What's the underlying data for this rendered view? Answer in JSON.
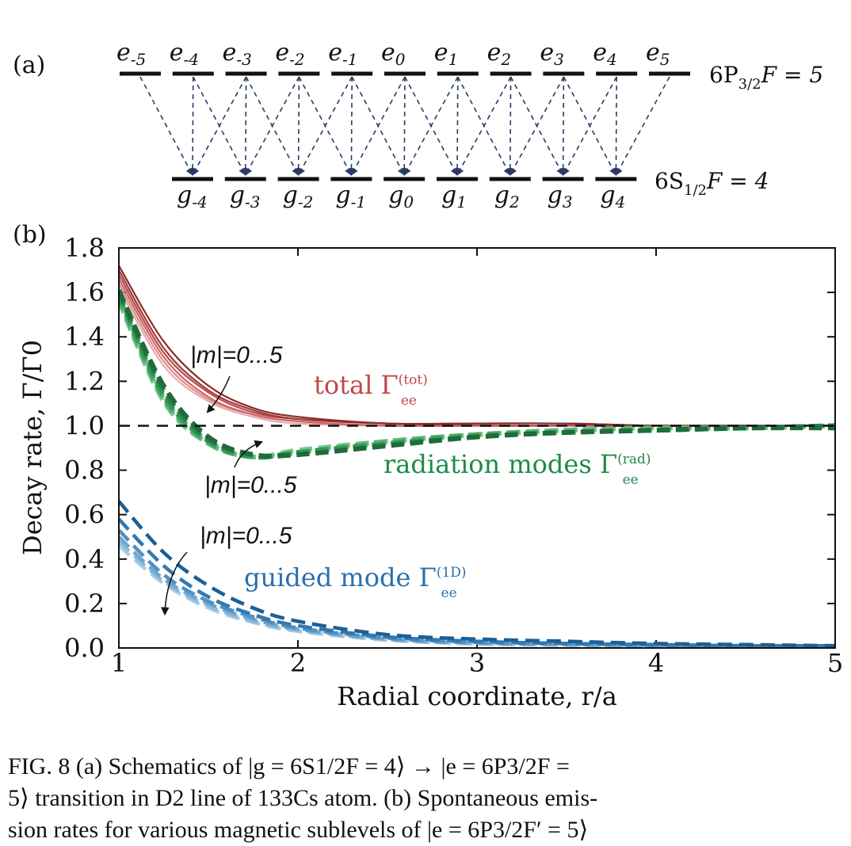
{
  "panel_a": {
    "label": "(a)",
    "excited_levels": [
      "-5",
      "-4",
      "-3",
      "-2",
      "-1",
      "0",
      "1",
      "2",
      "3",
      "4",
      "5"
    ],
    "ground_levels": [
      "-4",
      "-3",
      "-2",
      "-1",
      "0",
      "1",
      "2",
      "3",
      "4"
    ],
    "excited_state_label": "6P",
    "excited_state_sub": "3/2",
    "excited_state_F": "F = 5",
    "ground_state_label": "6S",
    "ground_state_sub": "1/2",
    "ground_state_F": "F = 4"
  },
  "panel_b": {
    "label": "(b)"
  },
  "chart_data": {
    "type": "line",
    "xlabel": "Radial coordinate, r/a",
    "ylabel": "Decay rate, Γ/Γ0",
    "xlim": [
      1,
      5
    ],
    "ylim": [
      0,
      1.8
    ],
    "xticks": [
      "1",
      "2",
      "3",
      "4",
      "5"
    ],
    "yticks": [
      "0.0",
      "0.2",
      "0.4",
      "0.6",
      "0.8",
      "1.0",
      "1.2",
      "1.4",
      "1.6",
      "1.8"
    ],
    "reference_line": {
      "y": 1.0,
      "style": "dashed",
      "color": "#111111"
    },
    "annotations": {
      "total_label": "total Γ",
      "total_sup": "(tot)",
      "total_sub": "ee",
      "rad_label": "radiation modes Γ",
      "rad_sup": "(rad)",
      "rad_sub": "ee",
      "guided_label": "guided mode Γ",
      "guided_sup": "(1D)",
      "guided_sub": "ee",
      "m_label_total": "|m|=0...5",
      "m_label_rad": "|m|=0...5",
      "m_label_guided": "|m|=0...5"
    },
    "x": [
      1.0,
      1.25,
      1.5,
      1.75,
      2.0,
      2.5,
      3.0,
      3.5,
      4.0,
      4.5,
      5.0
    ],
    "series_groups": [
      {
        "name": "total",
        "style": "solid",
        "series": [
          {
            "name": "|m|=0",
            "color": "#8a2a2a",
            "values": [
              1.72,
              1.38,
              1.18,
              1.08,
              1.04,
              1.01,
              1.01,
              1.01,
              1.0,
              1.0,
              1.0
            ]
          },
          {
            "name": "|m|=1",
            "color": "#a13a3a",
            "values": [
              1.7,
              1.35,
              1.16,
              1.07,
              1.03,
              1.01,
              1.01,
              1.01,
              1.0,
              1.0,
              1.0
            ]
          },
          {
            "name": "|m|=2",
            "color": "#b84b4b",
            "values": [
              1.68,
              1.33,
              1.15,
              1.06,
              1.03,
              1.01,
              1.0,
              1.0,
              1.0,
              1.0,
              1.0
            ]
          },
          {
            "name": "|m|=3",
            "color": "#cc6666",
            "values": [
              1.66,
              1.31,
              1.13,
              1.05,
              1.02,
              1.0,
              1.0,
              1.0,
              1.0,
              1.0,
              1.0
            ]
          },
          {
            "name": "|m|=4",
            "color": "#dd8a8a",
            "values": [
              1.64,
              1.29,
              1.12,
              1.05,
              1.02,
              1.0,
              1.0,
              1.0,
              1.0,
              1.0,
              1.0
            ]
          },
          {
            "name": "|m|=5",
            "color": "#e8aaaa",
            "values": [
              1.62,
              1.27,
              1.11,
              1.04,
              1.01,
              1.0,
              1.0,
              1.0,
              1.0,
              1.0,
              1.0
            ]
          }
        ]
      },
      {
        "name": "radiation",
        "style": "dashed",
        "series": [
          {
            "name": "|m|=0",
            "color": "#1f6b3a",
            "values": [
              1.61,
              1.18,
              0.95,
              0.87,
              0.87,
              0.91,
              0.95,
              0.97,
              0.98,
              0.99,
              0.99
            ]
          },
          {
            "name": "|m|=1",
            "color": "#2a8048",
            "values": [
              1.6,
              1.16,
              0.94,
              0.87,
              0.87,
              0.91,
              0.95,
              0.97,
              0.98,
              0.99,
              1.0
            ]
          },
          {
            "name": "|m|=2",
            "color": "#349955",
            "values": [
              1.59,
              1.14,
              0.93,
              0.86,
              0.88,
              0.92,
              0.95,
              0.97,
              0.98,
              0.99,
              1.0
            ]
          },
          {
            "name": "|m|=3",
            "color": "#44a864",
            "values": [
              1.58,
              1.13,
              0.93,
              0.86,
              0.88,
              0.92,
              0.96,
              0.97,
              0.98,
              0.99,
              1.0
            ]
          },
          {
            "name": "|m|=4",
            "color": "#5db87a",
            "values": [
              1.57,
              1.12,
              0.92,
              0.86,
              0.88,
              0.93,
              0.96,
              0.98,
              0.99,
              0.99,
              1.0
            ]
          },
          {
            "name": "|m|=5",
            "color": "#7cc892",
            "values": [
              1.56,
              1.11,
              0.92,
              0.86,
              0.89,
              0.93,
              0.96,
              0.98,
              0.99,
              0.99,
              1.0
            ]
          }
        ]
      },
      {
        "name": "guided",
        "style": "dashed",
        "series": [
          {
            "name": "|m|=0",
            "color": "#1b5f96",
            "values": [
              0.66,
              0.43,
              0.28,
              0.18,
              0.12,
              0.06,
              0.04,
              0.03,
              0.02,
              0.015,
              0.01
            ]
          },
          {
            "name": "|m|=1",
            "color": "#3378b0",
            "values": [
              0.58,
              0.37,
              0.23,
              0.15,
              0.1,
              0.05,
              0.03,
              0.02,
              0.015,
              0.01,
              0.01
            ]
          },
          {
            "name": "|m|=2",
            "color": "#5090c2",
            "values": [
              0.53,
              0.33,
              0.21,
              0.14,
              0.09,
              0.045,
              0.025,
              0.02,
              0.012,
              0.01,
              0.008
            ]
          },
          {
            "name": "|m|=3",
            "color": "#6ea6d0",
            "values": [
              0.5,
              0.31,
              0.2,
              0.13,
              0.085,
              0.04,
              0.022,
              0.016,
              0.01,
              0.008,
              0.006
            ]
          },
          {
            "name": "|m|=4",
            "color": "#8dbbdc",
            "values": [
              0.48,
              0.3,
              0.19,
              0.12,
              0.08,
              0.038,
              0.02,
              0.014,
              0.01,
              0.007,
              0.005
            ]
          },
          {
            "name": "|m|=5",
            "color": "#a9cde6",
            "values": [
              0.46,
              0.29,
              0.18,
              0.115,
              0.075,
              0.035,
              0.018,
              0.012,
              0.009,
              0.006,
              0.005
            ]
          }
        ]
      }
    ],
    "colors": {
      "total": "#c0464b",
      "radiation": "#1e8a4a",
      "guided": "#2a6fad",
      "axis": "#111111",
      "transition": "#2a3a66"
    }
  },
  "caption": {
    "line1": "FIG. 8  (a) Schematics of |g = 6S1/2F = 4⟩ → |e = 6P3/2F =",
    "line2": "5⟩ transition in D2 line of 133Cs atom. (b) Spontaneous emis-",
    "line3": "sion rates for various magnetic sublevels of |e = 6P3/2F′ = 5⟩"
  }
}
